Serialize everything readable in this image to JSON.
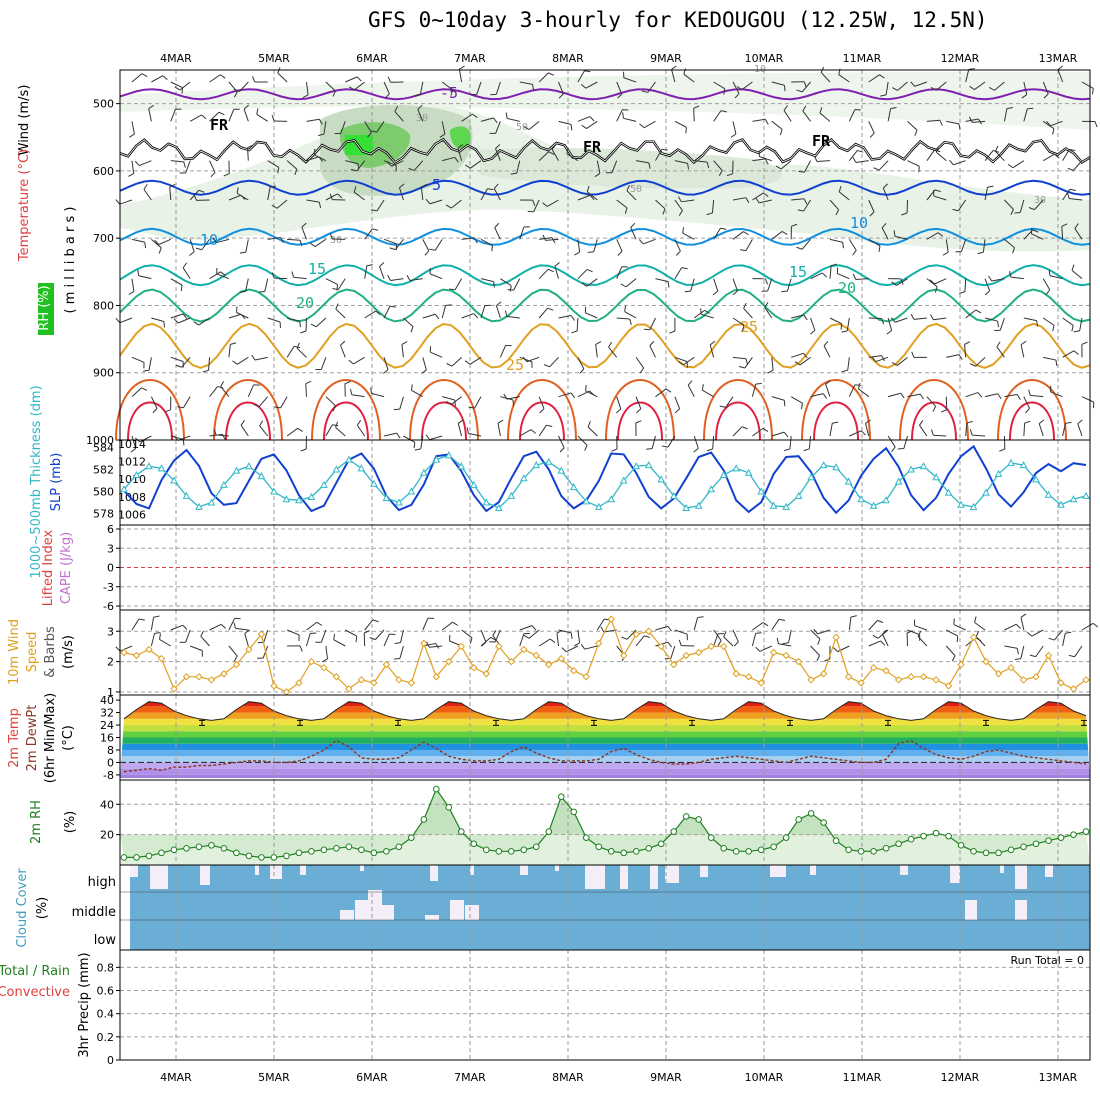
{
  "title": "GFS 0~10day 3-hourly for KEDOUGOU (12.25W, 12.5N)",
  "colors": {
    "purple": "#8020b0",
    "black": "#000000",
    "blue": "#1040d0",
    "lightblue": "#1090e0",
    "teal": "#10b0a8",
    "green": "#20b080",
    "gold": "#e0a020",
    "orange": "#e06020",
    "red": "#e02040",
    "cape": "#c070d0",
    "rh2m": "#208020",
    "cloudbg": "#6aaed6",
    "cloudfg": "#f4eef8"
  },
  "chart_data": [
    {
      "type": "contour",
      "panel": "upper-air",
      "x": [
        "4MAR",
        "5MAR",
        "6MAR",
        "7MAR",
        "8MAR",
        "9MAR",
        "10MAR",
        "11MAR",
        "12MAR",
        "13MAR"
      ],
      "ylabel_parts": [
        "RH (%)",
        "Temperature (°C)",
        "Wind (m/s)",
        "( m i l l i b a r s )"
      ],
      "y_ticks": [
        500,
        600,
        700,
        800,
        900,
        1000
      ],
      "ylim": [
        450,
        1000
      ],
      "contour_labels": [
        {
          "text": "-5",
          "series": "purple"
        },
        {
          "text": "FR",
          "series": "black"
        },
        {
          "text": "FR",
          "series": "black"
        },
        {
          "text": "FR",
          "series": "black"
        },
        {
          "text": "5",
          "series": "blue"
        },
        {
          "text": "10",
          "series": "lightblue"
        },
        {
          "text": "10",
          "series": "lightblue"
        },
        {
          "text": "15",
          "series": "teal"
        },
        {
          "text": "15",
          "series": "teal"
        },
        {
          "text": "20",
          "series": "green"
        },
        {
          "text": "20",
          "series": "green"
        },
        {
          "text": "25",
          "series": "gold"
        },
        {
          "text": "25",
          "series": "gold"
        },
        {
          "text": "30",
          "series": "rh"
        },
        {
          "text": "50",
          "series": "rh"
        },
        {
          "text": "50",
          "series": "rh"
        },
        {
          "text": "30",
          "series": "rh"
        },
        {
          "text": "30",
          "series": "rh"
        },
        {
          "text": "10",
          "series": "rh"
        }
      ],
      "series": [
        {
          "name": "-5",
          "level": 486
        },
        {
          "name": "FR",
          "level": 570
        },
        {
          "name": "5",
          "level": 625
        },
        {
          "name": "10",
          "level": 698
        },
        {
          "name": "15",
          "level": 755
        },
        {
          "name": "20",
          "level": 800
        },
        {
          "name": "25",
          "level": 860
        },
        {
          "name": "30",
          "level": 925
        },
        {
          "name": "35",
          "level": 965
        }
      ]
    },
    {
      "type": "line",
      "panel": "thickness-slp",
      "ylabel_left": "1000~500mb Thickness (dm)",
      "ylabel_right": "SLP (mb)",
      "y_ticks_left": [
        578,
        580,
        582,
        584
      ],
      "y_ticks_right": [
        1006,
        1008,
        1010,
        1012,
        1014
      ],
      "series": [
        {
          "name": "SLP (mb)",
          "values": [
            1008.7,
            1007.2,
            1006.7,
            1009.9,
            1012.1,
            1013.3,
            1011.5,
            1008.4,
            1007.1,
            1007.3,
            1009.8,
            1012.3,
            1012.8,
            1011.0,
            1008.2,
            1006.4,
            1007.0,
            1009.6,
            1012.2,
            1012.9,
            1011.2,
            1008.1,
            1006.5,
            1007.1,
            1009.4,
            1012.6,
            1012.8,
            1010.9,
            1008.2,
            1006.4,
            1007.4,
            1010.1,
            1012.6,
            1013.1,
            1011.1,
            1008.1,
            1006.7,
            1007.6,
            1009.8,
            1012.9,
            1012.8,
            1010.7,
            1008.0,
            1006.7,
            1007.8,
            1010.1,
            1012.5,
            1013.0,
            1011.0,
            1007.6,
            1006.3,
            1007.4,
            1010.6,
            1012.5,
            1012.6,
            1010.8,
            1007.9,
            1006.2,
            1007.6,
            1010.4,
            1012.3,
            1013.5,
            1011.4,
            1008.2,
            1006.5,
            1007.9,
            1010.6,
            1012.6,
            1013.7,
            1011.2,
            1008.3,
            1006.9,
            1008.5,
            1010.7,
            1011.7,
            1010.9,
            1011.8,
            1011.6
          ]
        },
        {
          "name": "1000~500mb Thickness (dm)",
          "values": [
            580.2,
            581.5,
            582.3,
            582.1,
            581.0,
            579.6,
            578.6,
            579.0,
            580.6,
            581.9,
            582.3,
            581.4,
            580.0,
            579.3,
            579.2,
            579.5,
            580.6,
            582.0,
            582.9,
            582.1,
            580.7,
            579.4,
            579.0,
            580.0,
            581.7,
            582.9,
            583.3,
            582.3,
            580.6,
            579.0,
            578.5,
            579.6,
            581.2,
            582.4,
            582.7,
            581.9,
            580.4,
            579.1,
            578.6,
            579.3,
            581.0,
            582.3,
            582.4,
            581.1,
            579.6,
            578.5,
            578.7,
            580.2,
            581.5,
            582.1,
            581.7,
            580.0,
            578.7,
            578.6,
            579.6,
            581.3,
            582.4,
            582.2,
            580.9,
            579.3,
            578.7,
            579.2,
            580.9,
            582.0,
            582.3,
            581.3,
            579.9,
            578.8,
            578.6,
            579.9,
            581.6,
            582.6,
            582.4,
            581.1,
            579.7,
            578.8,
            579.3,
            579.6
          ]
        }
      ]
    },
    {
      "type": "line",
      "panel": "lifted-cape",
      "ylabel_left": "Lifted Index",
      "ylabel_right": "CAPE (J/kg)",
      "y_ticks": [
        "6",
        "3",
        "0",
        "-3",
        "-6"
      ],
      "ylim": [
        -6,
        6
      ]
    },
    {
      "type": "line",
      "panel": "wind10m",
      "ylabel_parts": [
        "10m Wind",
        "Speed",
        "& Barbs",
        "(m/s)"
      ],
      "y_ticks": [
        1,
        2,
        3
      ],
      "ylim": [
        0.9,
        3.7
      ],
      "series": [
        {
          "name": "10m Wind Speed",
          "values": [
            2.3,
            2.2,
            2.4,
            2.1,
            1.1,
            1.5,
            1.5,
            1.4,
            1.6,
            1.9,
            2.4,
            2.9,
            1.2,
            1.0,
            1.3,
            2.0,
            1.8,
            1.5,
            1.1,
            1.4,
            1.3,
            1.9,
            1.4,
            1.3,
            2.6,
            1.5,
            2.0,
            2.5,
            1.8,
            1.6,
            2.5,
            2.0,
            2.4,
            2.2,
            1.9,
            2.1,
            1.7,
            1.5,
            2.6,
            3.4,
            2.2,
            2.9,
            3.0,
            2.5,
            1.9,
            2.2,
            2.3,
            2.5,
            2.5,
            1.6,
            1.5,
            1.3,
            2.3,
            2.2,
            2.0,
            1.4,
            1.6,
            2.8,
            1.5,
            1.3,
            1.8,
            1.7,
            1.4,
            1.5,
            1.5,
            1.4,
            1.2,
            1.9,
            2.8,
            2.0,
            1.6,
            1.8,
            1.4,
            1.5,
            2.2,
            1.3,
            1.1,
            1.4
          ]
        }
      ]
    },
    {
      "type": "area",
      "panel": "temp2m",
      "ylabel_parts": [
        "2m Temp",
        "2m DewPt",
        "(6hr Min/Max)",
        "(°C)"
      ],
      "y_ticks": [
        40,
        32,
        24,
        16,
        8,
        0,
        -8
      ],
      "ylim": [
        -10,
        42
      ],
      "series": [
        {
          "name": "2m Temp",
          "values": [
            28,
            34,
            39,
            38,
            33,
            30,
            28,
            27,
            28,
            34,
            39,
            38,
            33,
            30,
            28,
            27,
            28,
            34,
            39,
            38,
            33,
            30,
            28,
            27,
            28,
            34,
            39,
            38,
            33,
            30,
            28,
            27,
            28,
            34,
            39,
            38,
            33,
            30,
            28,
            27,
            28,
            34,
            39,
            38,
            33,
            30,
            28,
            27,
            28,
            34,
            39,
            38,
            33,
            30,
            28,
            27,
            28,
            34,
            39,
            38,
            33,
            30,
            28,
            27,
            28,
            34,
            39,
            38,
            33,
            30,
            28,
            27,
            28,
            34,
            39,
            38,
            33,
            30
          ]
        },
        {
          "name": "2m DewPt",
          "values": [
            -6,
            -5,
            -4,
            -5,
            -3,
            -3,
            -2,
            -2,
            -1,
            0,
            1,
            1,
            0,
            0,
            1,
            4,
            8,
            14,
            10,
            3,
            2,
            2,
            3,
            8,
            13,
            9,
            4,
            2,
            1,
            1,
            2,
            7,
            10,
            6,
            3,
            1,
            1,
            1,
            2,
            7,
            9,
            5,
            2,
            0,
            -1,
            -1,
            0,
            2,
            3,
            4,
            3,
            2,
            1,
            0,
            2,
            4,
            3,
            2,
            1,
            0,
            0,
            2,
            12,
            14,
            9,
            5,
            3,
            2,
            4,
            7,
            8,
            6,
            4,
            3,
            2,
            1,
            0,
            -1
          ]
        }
      ]
    },
    {
      "type": "area",
      "panel": "rh2m",
      "ylabel": "2m RH",
      "unit": "(%)",
      "y_ticks": [
        20,
        40
      ],
      "ylim": [
        0,
        56
      ],
      "series": [
        {
          "name": "2m RH",
          "values": [
            5,
            5,
            6,
            8,
            10,
            11,
            12,
            13,
            11,
            8,
            6,
            5,
            5,
            6,
            8,
            9,
            10,
            11,
            12,
            10,
            8,
            9,
            12,
            18,
            30,
            50,
            38,
            22,
            14,
            10,
            9,
            9,
            10,
            12,
            22,
            45,
            35,
            18,
            12,
            9,
            8,
            9,
            11,
            14,
            22,
            32,
            30,
            18,
            11,
            9,
            9,
            10,
            12,
            18,
            30,
            34,
            28,
            16,
            10,
            9,
            9,
            11,
            14,
            17,
            19,
            21,
            19,
            13,
            9,
            8,
            8,
            10,
            12,
            14,
            16,
            18,
            20,
            22
          ]
        }
      ]
    },
    {
      "type": "heatmap",
      "panel": "cloud",
      "ylabel": "Cloud Cover",
      "unit": "(%)",
      "levels": [
        "high",
        "middle",
        "low"
      ],
      "series": [
        {
          "name": "high",
          "values": [
            0,
            0,
            22,
            22,
            0,
            0,
            0,
            0,
            10,
            0,
            20,
            20,
            0,
            0,
            0,
            12,
            6,
            6,
            0,
            0,
            0,
            0,
            0,
            0,
            0,
            0,
            0,
            0,
            0,
            15,
            8,
            8,
            0,
            0,
            0,
            0,
            0,
            0,
            0,
            0,
            0,
            0,
            0,
            0,
            0,
            0,
            0,
            0,
            0,
            0,
            0,
            0,
            0,
            0,
            0,
            0,
            0,
            0,
            0,
            0,
            0,
            0,
            0,
            0,
            0,
            0,
            0,
            0,
            0,
            0,
            0,
            0,
            0,
            0,
            0,
            0,
            0,
            0
          ]
        },
        {
          "name": "middle",
          "values": [
            0,
            0,
            0,
            0,
            0,
            0,
            0,
            0,
            0,
            0,
            0,
            0,
            0,
            0,
            0,
            0,
            0,
            0,
            0,
            0,
            0,
            0,
            0,
            0,
            0,
            0,
            0,
            0,
            0,
            0,
            0,
            0,
            0,
            0,
            0,
            0,
            0,
            0,
            0,
            0,
            0,
            0,
            0,
            0,
            0,
            0,
            0,
            0,
            0,
            0,
            0,
            0,
            0,
            0,
            0,
            0,
            0,
            0,
            0,
            0,
            0,
            0,
            0,
            0,
            0,
            0,
            0,
            0,
            0,
            0,
            0,
            0,
            0,
            0,
            0,
            0,
            0,
            0
          ]
        }
      ]
    },
    {
      "type": "bar",
      "panel": "precip",
      "ylabel_parts": [
        "Total / Rain",
        "Convective",
        "3hr Precip (mm)"
      ],
      "annotation": "Run Total = 0",
      "y_ticks": [
        "0",
        "0.2",
        "0.4",
        "0.6",
        "0.8"
      ],
      "ylim": [
        0,
        0.95
      ],
      "series": [
        {
          "name": "Total / Rain",
          "values": [
            0,
            0,
            0,
            0,
            0,
            0,
            0,
            0,
            0,
            0,
            0,
            0,
            0,
            0,
            0,
            0,
            0,
            0,
            0,
            0,
            0,
            0,
            0,
            0,
            0,
            0,
            0,
            0,
            0,
            0,
            0,
            0,
            0,
            0,
            0,
            0,
            0,
            0,
            0,
            0,
            0,
            0,
            0,
            0,
            0,
            0,
            0,
            0,
            0,
            0,
            0,
            0,
            0,
            0,
            0,
            0,
            0,
            0,
            0,
            0,
            0,
            0,
            0,
            0,
            0,
            0,
            0,
            0,
            0,
            0,
            0,
            0,
            0,
            0,
            0,
            0,
            0,
            0
          ]
        }
      ]
    }
  ],
  "x_axis_labels": [
    "4MAR",
    "5MAR",
    "6MAR",
    "7MAR",
    "8MAR",
    "9MAR",
    "10MAR",
    "11MAR",
    "12MAR",
    "13MAR"
  ]
}
